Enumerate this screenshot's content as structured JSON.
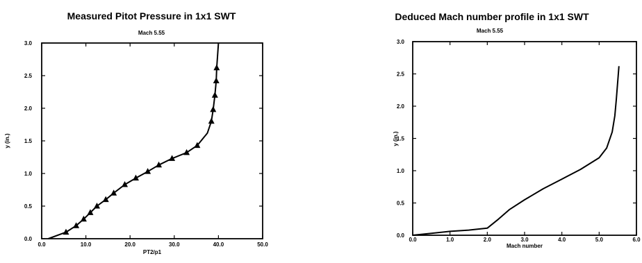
{
  "chart_data": [
    {
      "type": "line",
      "title": "Measured Pitot Pressure in 1x1 SWT",
      "subtitle": "Mach 5.55",
      "xlabel": "PT2/p1",
      "ylabel": "y (in.)",
      "xlim": [
        0,
        50
      ],
      "ylim": [
        0,
        3.0
      ],
      "xticks": [
        "0.0",
        "10.0",
        "20.0",
        "30.0",
        "40.0",
        "50.0"
      ],
      "yticks": [
        "0.0",
        "0.5",
        "1.0",
        "1.5",
        "2.0",
        "2.5",
        "3.0"
      ],
      "grid": false,
      "series": [
        {
          "marker": "triangle",
          "x": [
            1.5,
            5.5,
            7.8,
            9.5,
            11.0,
            12.5,
            14.5,
            16.3,
            18.8,
            21.3,
            24.0,
            26.5,
            29.5,
            32.8,
            35.2,
            37.5,
            38.4,
            38.8,
            39.2,
            39.5,
            39.6,
            39.8,
            40.0
          ],
          "y": [
            0.0,
            0.1,
            0.2,
            0.3,
            0.4,
            0.5,
            0.6,
            0.7,
            0.83,
            0.93,
            1.03,
            1.13,
            1.23,
            1.32,
            1.43,
            1.62,
            1.8,
            1.98,
            2.2,
            2.42,
            2.62,
            2.8,
            3.0
          ],
          "marked": [
            false,
            true,
            true,
            true,
            true,
            true,
            true,
            true,
            true,
            true,
            true,
            true,
            true,
            true,
            true,
            false,
            true,
            true,
            true,
            true,
            true,
            false,
            false
          ]
        }
      ]
    },
    {
      "type": "line",
      "title": "Deduced Mach number profile in 1x1 SWT",
      "subtitle": "Mach 5.55",
      "xlabel": "Mach number",
      "ylabel": "y (in.)",
      "xlim": [
        0,
        6.0
      ],
      "ylim": [
        0,
        3.0
      ],
      "xticks": [
        "0.0",
        "1.0",
        "2.0",
        "3.0",
        "4.0",
        "5.0",
        "6.0"
      ],
      "yticks": [
        "0.0",
        "0.5",
        "1.0",
        "1.5",
        "2.0",
        "2.5",
        "3.0"
      ],
      "grid": false,
      "series": [
        {
          "x": [
            0.0,
            0.5,
            1.0,
            1.5,
            2.0,
            2.3,
            2.6,
            3.0,
            3.5,
            4.0,
            4.5,
            5.0,
            5.2,
            5.35,
            5.42,
            5.46,
            5.5,
            5.53
          ],
          "y": [
            0.0,
            0.03,
            0.06,
            0.08,
            0.11,
            0.25,
            0.4,
            0.55,
            0.72,
            0.87,
            1.02,
            1.2,
            1.35,
            1.6,
            1.85,
            2.1,
            2.4,
            2.62
          ]
        }
      ]
    }
  ]
}
